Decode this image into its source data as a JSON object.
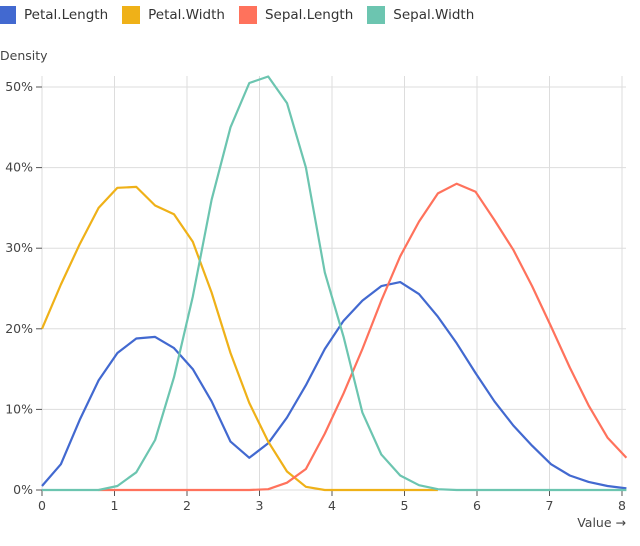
{
  "chart_data": {
    "type": "line",
    "ylabel": "Density",
    "xlabel": "Value →",
    "xlim": [
      0,
      8
    ],
    "ylim": [
      0,
      50
    ],
    "x_ticks": [
      "0",
      "1",
      "2",
      "3",
      "4",
      "5",
      "6",
      "7",
      "8"
    ],
    "y_ticks": [
      "0%",
      "10%",
      "20%",
      "30%",
      "40%",
      "50%"
    ],
    "grid": true,
    "legend_placement": "top-left",
    "x": [
      0,
      0.26,
      0.52,
      0.78,
      1.04,
      1.3,
      1.56,
      1.82,
      2.08,
      2.34,
      2.6,
      2.86,
      3.12,
      3.38,
      3.64,
      3.9,
      4.16,
      4.42,
      4.68,
      4.94,
      5.2,
      5.46,
      5.72,
      5.98,
      6.24,
      6.5,
      6.76,
      7.02,
      7.28,
      7.54,
      7.8,
      8.06
    ],
    "series": [
      {
        "name": "Petal.Length",
        "color": "#4269d0",
        "values": [
          0.5,
          3.2,
          8.7,
          13.6,
          17,
          18.8,
          19,
          17.6,
          15,
          11,
          6,
          4,
          5.8,
          9,
          13,
          17.5,
          21,
          23.5,
          25.3,
          25.8,
          24.3,
          21.5,
          18.2,
          14.5,
          11,
          8,
          5.5,
          3.2,
          1.8,
          1,
          0.5,
          0.2
        ]
      },
      {
        "name": "Petal.Width",
        "color": "#efb118",
        "values": [
          20,
          25.5,
          30.5,
          35,
          37.5,
          37.6,
          35.3,
          34.2,
          30.8,
          24.5,
          17,
          10.8,
          6,
          2.3,
          0.4,
          0,
          0,
          0,
          0,
          0,
          0,
          0,
          null,
          null,
          null,
          null,
          null,
          null,
          null,
          null,
          null,
          null
        ]
      },
      {
        "name": "Sepal.Length",
        "color": "#ff725c",
        "values": [
          null,
          null,
          null,
          0,
          0,
          0,
          0,
          0,
          0,
          0,
          0,
          0,
          0.1,
          0.9,
          2.6,
          7,
          12,
          17.5,
          23.5,
          29,
          33.3,
          36.8,
          38,
          37,
          33.5,
          29.8,
          25.3,
          20.3,
          15.2,
          10.5,
          6.5,
          4
        ]
      },
      {
        "name": "Sepal.Width",
        "color": "#6cc5b0",
        "values": [
          0,
          0,
          0,
          0,
          0.5,
          2.2,
          6.2,
          14,
          24,
          36,
          45,
          50.5,
          51.3,
          48,
          40,
          27,
          19,
          9.6,
          4.4,
          1.8,
          0.6,
          0.1,
          0,
          0,
          0,
          0,
          0,
          0,
          0,
          0,
          0,
          0
        ]
      }
    ]
  }
}
